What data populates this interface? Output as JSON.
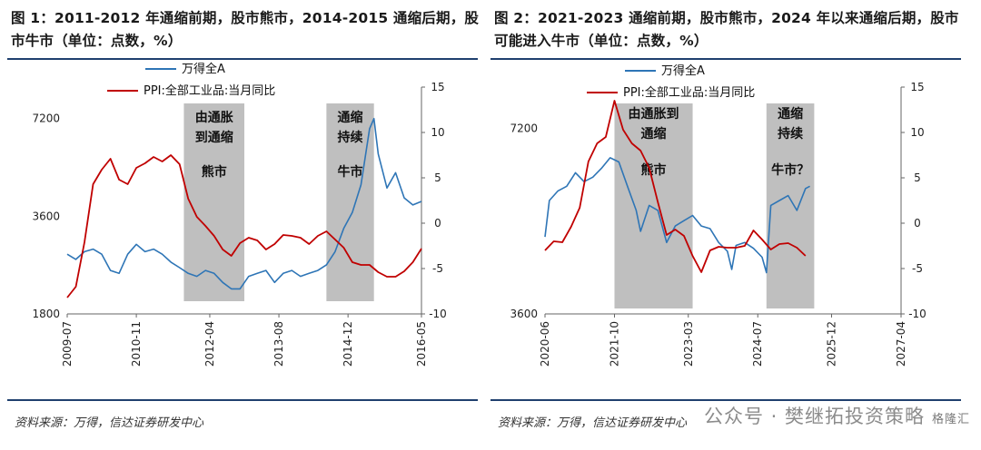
{
  "panels": [
    {
      "title": "图 1：2011-2012 年通缩前期，股市熊市，2014-2015 通缩后期，股市牛市（单位：点数，%）",
      "source": "资料来源：万得，信达证券研发中心"
    },
    {
      "title": "图 2：2021-2023 通缩前期，股市熊市，2024 年以来通缩后期，股市可能进入牛市（单位：点数，%）",
      "source": "资料来源：万得，信达证券研发中心"
    }
  ],
  "watermark": {
    "text": "公众号 · 樊继拓投资策略",
    "brand": "格隆汇"
  },
  "colors": {
    "wind_a": "#2e75b6",
    "ppi": "#c00000",
    "shade": "#bfbfbf",
    "rule": "#1f3f6e"
  },
  "chart_data": [
    {
      "type": "line",
      "x_ticks": [
        "2009-07",
        "2010-11",
        "2012-04",
        "2013-08",
        "2014-12",
        "2016-05"
      ],
      "x_range": [
        "2009-07",
        "2016-05"
      ],
      "y_left": {
        "scale": "log",
        "ticks": [
          1800,
          3600,
          7200
        ],
        "lim": [
          1800,
          9000
        ]
      },
      "y_right": {
        "ticks": [
          -10,
          -5,
          0,
          5,
          10,
          15
        ],
        "lim": [
          -10,
          15
        ]
      },
      "legend": [
        "万得全A",
        "PPI:全部工业品:当月同比"
      ],
      "legend_position": "top-left",
      "series": [
        {
          "name": "万得全A",
          "axis": "left",
          "x": [
            "2009-07",
            "2009-09",
            "2009-11",
            "2010-01",
            "2010-03",
            "2010-05",
            "2010-07",
            "2010-09",
            "2010-11",
            "2011-01",
            "2011-03",
            "2011-05",
            "2011-07",
            "2011-09",
            "2011-11",
            "2012-01",
            "2012-03",
            "2012-05",
            "2012-07",
            "2012-09",
            "2012-11",
            "2013-01",
            "2013-03",
            "2013-05",
            "2013-07",
            "2013-09",
            "2013-11",
            "2014-01",
            "2014-03",
            "2014-05",
            "2014-07",
            "2014-09",
            "2014-11",
            "2015-01",
            "2015-03",
            "2015-05",
            "2015-06",
            "2015-07",
            "2015-09",
            "2015-11",
            "2016-01",
            "2016-03",
            "2016-05"
          ],
          "values": [
            2750,
            2650,
            2800,
            2850,
            2750,
            2450,
            2400,
            2750,
            2950,
            2800,
            2850,
            2750,
            2600,
            2500,
            2400,
            2350,
            2450,
            2400,
            2250,
            2150,
            2150,
            2350,
            2400,
            2450,
            2250,
            2400,
            2450,
            2350,
            2400,
            2450,
            2550,
            2800,
            3300,
            3700,
            4500,
            6700,
            7200,
            5600,
            4400,
            4900,
            4100,
            3900,
            4000
          ]
        },
        {
          "name": "PPI:全部工业品:当月同比",
          "axis": "right",
          "x": [
            "2009-07",
            "2009-09",
            "2009-11",
            "2010-01",
            "2010-03",
            "2010-05",
            "2010-07",
            "2010-09",
            "2010-11",
            "2011-01",
            "2011-03",
            "2011-05",
            "2011-07",
            "2011-09",
            "2011-11",
            "2012-01",
            "2012-03",
            "2012-05",
            "2012-07",
            "2012-09",
            "2012-11",
            "2013-01",
            "2013-03",
            "2013-05",
            "2013-07",
            "2013-09",
            "2013-11",
            "2014-01",
            "2014-03",
            "2014-05",
            "2014-07",
            "2014-09",
            "2014-11",
            "2015-01",
            "2015-03",
            "2015-05",
            "2015-07",
            "2015-09",
            "2015-11",
            "2016-01",
            "2016-03",
            "2016-05"
          ],
          "values": [
            -8.2,
            -7.0,
            -2.1,
            4.3,
            5.9,
            7.1,
            4.8,
            4.3,
            6.1,
            6.6,
            7.3,
            6.8,
            7.5,
            6.5,
            2.7,
            0.7,
            -0.3,
            -1.4,
            -2.9,
            -3.6,
            -2.2,
            -1.6,
            -1.9,
            -2.9,
            -2.3,
            -1.3,
            -1.4,
            -1.6,
            -2.3,
            -1.4,
            -0.9,
            -1.8,
            -2.7,
            -4.3,
            -4.6,
            -4.6,
            -5.4,
            -5.9,
            -5.9,
            -5.3,
            -4.3,
            -2.8
          ]
        }
      ],
      "shaded_periods": [
        {
          "start": "2011-10",
          "end": "2012-12",
          "label": [
            "由通胀",
            "到通缩",
            "熊市"
          ]
        },
        {
          "start": "2014-07",
          "end": "2015-06",
          "label": [
            "通缩",
            "持续",
            "牛市"
          ]
        }
      ]
    },
    {
      "type": "line",
      "x_ticks": [
        "2020-06",
        "2021-10",
        "2023-03",
        "2024-07",
        "2025-12",
        "2027-04"
      ],
      "x_range": [
        "2020-06",
        "2027-04"
      ],
      "y_left": {
        "scale": "log",
        "ticks": [
          3600,
          7200
        ],
        "lim": [
          3600,
          8400
        ]
      },
      "y_right": {
        "ticks": [
          -10,
          -5,
          0,
          5,
          10,
          15
        ],
        "lim": [
          -10,
          15
        ]
      },
      "legend": [
        "万得全A",
        "PPI:全部工业品:当月同比"
      ],
      "legend_position": "top-center",
      "series": [
        {
          "name": "万得全A",
          "axis": "left",
          "x": [
            "2020-06",
            "2020-07",
            "2020-09",
            "2020-11",
            "2021-01",
            "2021-03",
            "2021-05",
            "2021-07",
            "2021-09",
            "2021-11",
            "2022-01",
            "2022-03",
            "2022-04",
            "2022-06",
            "2022-08",
            "2022-10",
            "2022-12",
            "2023-02",
            "2023-04",
            "2023-06",
            "2023-08",
            "2023-10",
            "2023-12",
            "2024-01",
            "2024-02",
            "2024-04",
            "2024-06",
            "2024-08",
            "2024-09",
            "2024-10",
            "2024-12",
            "2025-02",
            "2025-04",
            "2025-06",
            "2025-07"
          ],
          "values": [
            4800,
            5500,
            5700,
            5800,
            6100,
            5900,
            6000,
            6200,
            6450,
            6350,
            5800,
            5300,
            4900,
            5400,
            5300,
            4700,
            5000,
            5100,
            5200,
            5000,
            4950,
            4700,
            4550,
            4250,
            4650,
            4700,
            4600,
            4450,
            4200,
            5400,
            5500,
            5600,
            5300,
            5750,
            5800
          ]
        },
        {
          "name": "PPI:全部工业品:当月同比",
          "axis": "right",
          "x": [
            "2020-06",
            "2020-08",
            "2020-10",
            "2020-12",
            "2021-02",
            "2021-04",
            "2021-06",
            "2021-08",
            "2021-10",
            "2021-12",
            "2022-02",
            "2022-04",
            "2022-06",
            "2022-08",
            "2022-10",
            "2022-12",
            "2023-02",
            "2023-04",
            "2023-06",
            "2023-08",
            "2023-10",
            "2023-12",
            "2024-02",
            "2024-04",
            "2024-06",
            "2024-08",
            "2024-10",
            "2024-12",
            "2025-02",
            "2025-04",
            "2025-06"
          ],
          "values": [
            -3.0,
            -2.0,
            -2.1,
            -0.4,
            1.7,
            6.8,
            8.8,
            9.5,
            13.5,
            10.3,
            8.8,
            8.0,
            6.1,
            2.3,
            -1.3,
            -0.7,
            -1.4,
            -3.6,
            -5.4,
            -3.0,
            -2.6,
            -2.7,
            -2.7,
            -2.5,
            -0.8,
            -1.8,
            -2.9,
            -2.3,
            -2.2,
            -2.7,
            -3.6
          ]
        }
      ],
      "shaded_periods": [
        {
          "start": "2021-10",
          "end": "2023-04",
          "label": [
            "由通胀到",
            "通缩",
            "熊市"
          ]
        },
        {
          "start": "2024-09",
          "end": "2025-08",
          "label": [
            "通缩",
            "持续",
            "牛市？"
          ]
        }
      ]
    }
  ]
}
